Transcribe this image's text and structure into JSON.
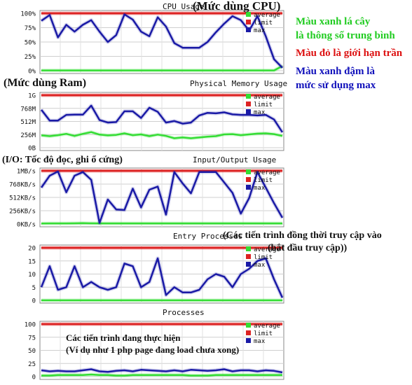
{
  "chart_data": [
    {
      "type": "line",
      "title": "CPU Usage",
      "annotation": "(Mức dùng CPU)",
      "yticks": [
        "100%",
        "75%",
        "50%",
        "25%",
        "0%"
      ],
      "ylim": [
        0,
        100
      ],
      "grid": true,
      "legend_position": "top-right",
      "series": [
        {
          "name": "average",
          "color": "#33dd33",
          "values": [
            0.5,
            0.5,
            0.5,
            0.5,
            0.5,
            0.5,
            0.5,
            0.5,
            0.5,
            0.5,
            0.5,
            0.5,
            0.5,
            0.5,
            0.5,
            0.5,
            0.5,
            0.5,
            0.5,
            0.5,
            0.5,
            0.5,
            0.5,
            0.5,
            0.5,
            0.5,
            0.5,
            0.5,
            0.5,
            8
          ]
        },
        {
          "name": "limit",
          "color": "#dd2222",
          "values": [
            100,
            100,
            100,
            100,
            100,
            100,
            100,
            100,
            100,
            100,
            100,
            100,
            100,
            100,
            100,
            100,
            100,
            100,
            100,
            100,
            100,
            100,
            100,
            100,
            100,
            100,
            100,
            100,
            100,
            100
          ]
        },
        {
          "name": "max",
          "color": "#1a1aa6",
          "values": [
            87,
            97,
            58,
            80,
            68,
            80,
            88,
            68,
            50,
            62,
            98,
            89,
            68,
            60,
            93,
            77,
            48,
            40,
            40,
            40,
            50,
            67,
            82,
            95,
            88,
            70,
            95,
            60,
            20,
            5
          ]
        }
      ]
    },
    {
      "type": "line",
      "title": "Physical Memory Usage",
      "annotation": "(Mức dùng Ram)",
      "yticks": [
        "1G",
        "768M",
        "512M",
        "256M",
        "0B"
      ],
      "ylim": [
        0,
        1024
      ],
      "grid": true,
      "legend_position": "top-right",
      "series": [
        {
          "name": "average",
          "color": "#33dd33",
          "values": [
            240,
            225,
            245,
            270,
            230,
            270,
            305,
            255,
            240,
            250,
            280,
            245,
            260,
            225,
            255,
            230,
            185,
            200,
            185,
            200,
            215,
            225,
            260,
            265,
            245,
            260,
            275,
            280,
            265,
            230
          ]
        },
        {
          "name": "limit",
          "color": "#dd2222",
          "values": [
            1024,
            1024,
            1024,
            1024,
            1024,
            1024,
            1024,
            1024,
            1024,
            1024,
            1024,
            1024,
            1024,
            1024,
            1024,
            1024,
            1024,
            1024,
            1024,
            1024,
            1024,
            1024,
            1024,
            1024,
            1024,
            1024,
            1024,
            1024,
            1024,
            1024
          ]
        },
        {
          "name": "max",
          "color": "#1a1aa6",
          "values": [
            740,
            530,
            530,
            640,
            645,
            645,
            820,
            540,
            490,
            500,
            710,
            710,
            580,
            780,
            700,
            490,
            520,
            470,
            490,
            630,
            680,
            670,
            690,
            650,
            640,
            640,
            630,
            640,
            550,
            300
          ]
        }
      ]
    },
    {
      "type": "line",
      "title": "Input/Output Usage",
      "annotation": "(I/O: Tốc độ đọc, ghi ổ cứng)",
      "yticks": [
        "1MB/s",
        "768KB/s",
        "512KB/s",
        "256KB/s",
        "0KB/s"
      ],
      "ylim": [
        0,
        1024
      ],
      "grid": true,
      "legend_position": "top-right",
      "series": [
        {
          "name": "average",
          "color": "#33dd33",
          "values": [
            10,
            12,
            12,
            12,
            14,
            16,
            14,
            12,
            12,
            12,
            12,
            12,
            12,
            12,
            12,
            12,
            12,
            12,
            12,
            12,
            12,
            12,
            12,
            12,
            12,
            12,
            12,
            12,
            12,
            12
          ]
        },
        {
          "name": "limit",
          "color": "#dd2222",
          "values": [
            1024,
            1024,
            1024,
            1024,
            1024,
            1024,
            1024,
            1024,
            1024,
            1024,
            1024,
            1024,
            1024,
            1024,
            1024,
            1024,
            1024,
            1024,
            1024,
            1024,
            1024,
            1024,
            1024,
            1024,
            1024,
            1024,
            1024,
            1024,
            1024,
            1024
          ]
        },
        {
          "name": "max",
          "color": "#1a1aa6",
          "values": [
            700,
            930,
            1010,
            610,
            930,
            1000,
            850,
            20,
            470,
            280,
            270,
            680,
            320,
            660,
            720,
            180,
            1000,
            780,
            590,
            1000,
            1000,
            1000,
            800,
            600,
            200,
            500,
            1000,
            700,
            400,
            120
          ]
        }
      ]
    },
    {
      "type": "line",
      "title": "Entry Processes",
      "annotation": "(Các tiến trình đồng thời truy cập vào (bắt đầu truy cập))",
      "yticks": [
        "20",
        "15",
        "10",
        "5",
        "0"
      ],
      "ylim": [
        0,
        20
      ],
      "grid": true,
      "legend_position": "top-right",
      "series": [
        {
          "name": "average",
          "color": "#33dd33",
          "values": [
            0,
            0,
            0,
            0,
            0,
            0,
            0,
            0,
            0,
            0,
            0,
            0,
            0,
            0,
            0,
            0,
            0,
            0,
            0,
            0,
            0,
            0,
            0,
            0,
            0,
            0,
            0,
            0,
            0,
            0
          ]
        },
        {
          "name": "limit",
          "color": "#dd2222",
          "values": [
            20,
            20,
            20,
            20,
            20,
            20,
            20,
            20,
            20,
            20,
            20,
            20,
            20,
            20,
            20,
            20,
            20,
            20,
            20,
            20,
            20,
            20,
            20,
            20,
            20,
            20,
            20,
            20,
            20,
            20
          ]
        },
        {
          "name": "max",
          "color": "#1a1aa6",
          "values": [
            5,
            13,
            4,
            5,
            13,
            5,
            7,
            5,
            4,
            5,
            14,
            13,
            5,
            7,
            16,
            2,
            5,
            3,
            3,
            4,
            8,
            10,
            9,
            5,
            10,
            12,
            15,
            16,
            8,
            1
          ]
        }
      ]
    },
    {
      "type": "line",
      "title": "Processes",
      "annotation": "Các tiến trình đang thực hiện (Ví dụ như 1 php page đang load chưa xong)",
      "yticks": [
        "100",
        "75",
        "50",
        "25",
        "0"
      ],
      "ylim": [
        0,
        100
      ],
      "grid": true,
      "legend_position": "top-right",
      "series": [
        {
          "name": "average",
          "color": "#33dd33",
          "values": [
            2,
            2,
            3,
            3,
            3,
            3,
            4,
            3,
            3,
            2,
            2,
            3,
            3,
            3,
            3,
            3,
            3,
            3,
            2,
            2,
            2,
            3,
            3,
            3,
            3,
            3,
            3,
            3,
            3,
            3
          ]
        },
        {
          "name": "limit",
          "color": "#dd2222",
          "values": [
            100,
            100,
            100,
            100,
            100,
            100,
            100,
            100,
            100,
            100,
            100,
            100,
            100,
            100,
            100,
            100,
            100,
            100,
            100,
            100,
            100,
            100,
            100,
            100,
            100,
            100,
            100,
            100,
            100,
            100
          ]
        },
        {
          "name": "max",
          "color": "#1a1aa6",
          "values": [
            12,
            10,
            11,
            10,
            10,
            12,
            14,
            10,
            9,
            11,
            12,
            10,
            13,
            12,
            11,
            10,
            12,
            10,
            13,
            12,
            11,
            12,
            14,
            10,
            12,
            12,
            10,
            12,
            11,
            8
          ]
        }
      ]
    }
  ],
  "legend_labels": [
    "average",
    "limit",
    "max"
  ],
  "side_notes": [
    {
      "key": "green_note",
      "lines": [
        "Màu xanh lá cây",
        "là thông số trung bình"
      ],
      "color": "#22cc22"
    },
    {
      "key": "red_note",
      "lines": [
        "Màu đỏ là giới hạn trần"
      ],
      "color": "#dd1111"
    },
    {
      "key": "blue_note",
      "lines": [
        "Màu xanh đậm là",
        "mức sử dụng max"
      ],
      "color": "#1111bb"
    }
  ],
  "colors": {
    "average": "#33dd33",
    "limit": "#dd2222",
    "max": "#1a1aa6",
    "grid": "#cccccc"
  }
}
